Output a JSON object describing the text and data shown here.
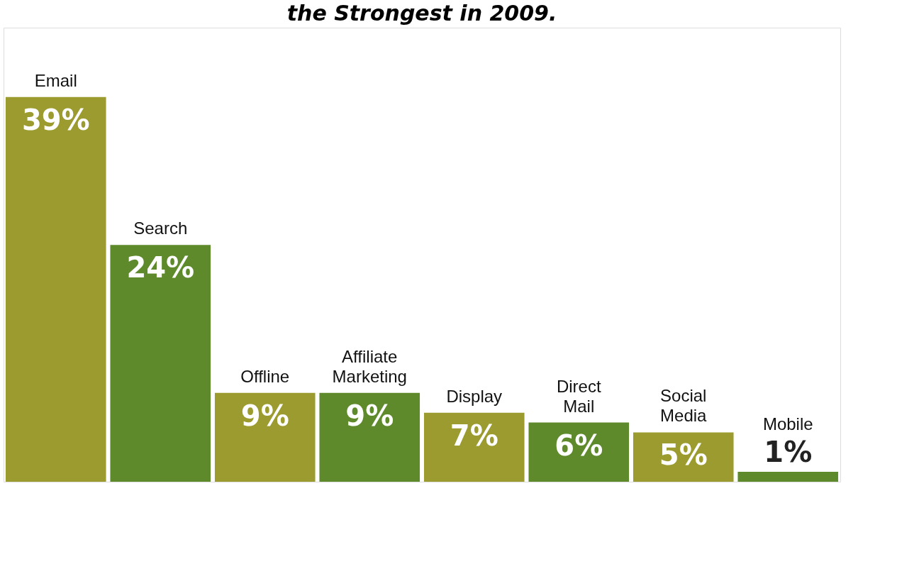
{
  "chart_data": {
    "type": "bar",
    "title": "the Strongest in 2009.",
    "categories": [
      "Email",
      "Search",
      "Offline",
      "Affiliate Marketing",
      "Display",
      "Direct Mail",
      "Social Media",
      "Mobile"
    ],
    "values": [
      39,
      24,
      9,
      9,
      7,
      6,
      5,
      1
    ],
    "colors": [
      "#9c9b2f",
      "#5e8a2c",
      "#9c9b2f",
      "#5e8a2c",
      "#9c9b2f",
      "#5e8a2c",
      "#9c9b2f",
      "#5e8a2c"
    ],
    "value_labels": [
      "39%",
      "24%",
      "9%",
      "9%",
      "7%",
      "6%",
      "5%",
      "1%"
    ]
  }
}
